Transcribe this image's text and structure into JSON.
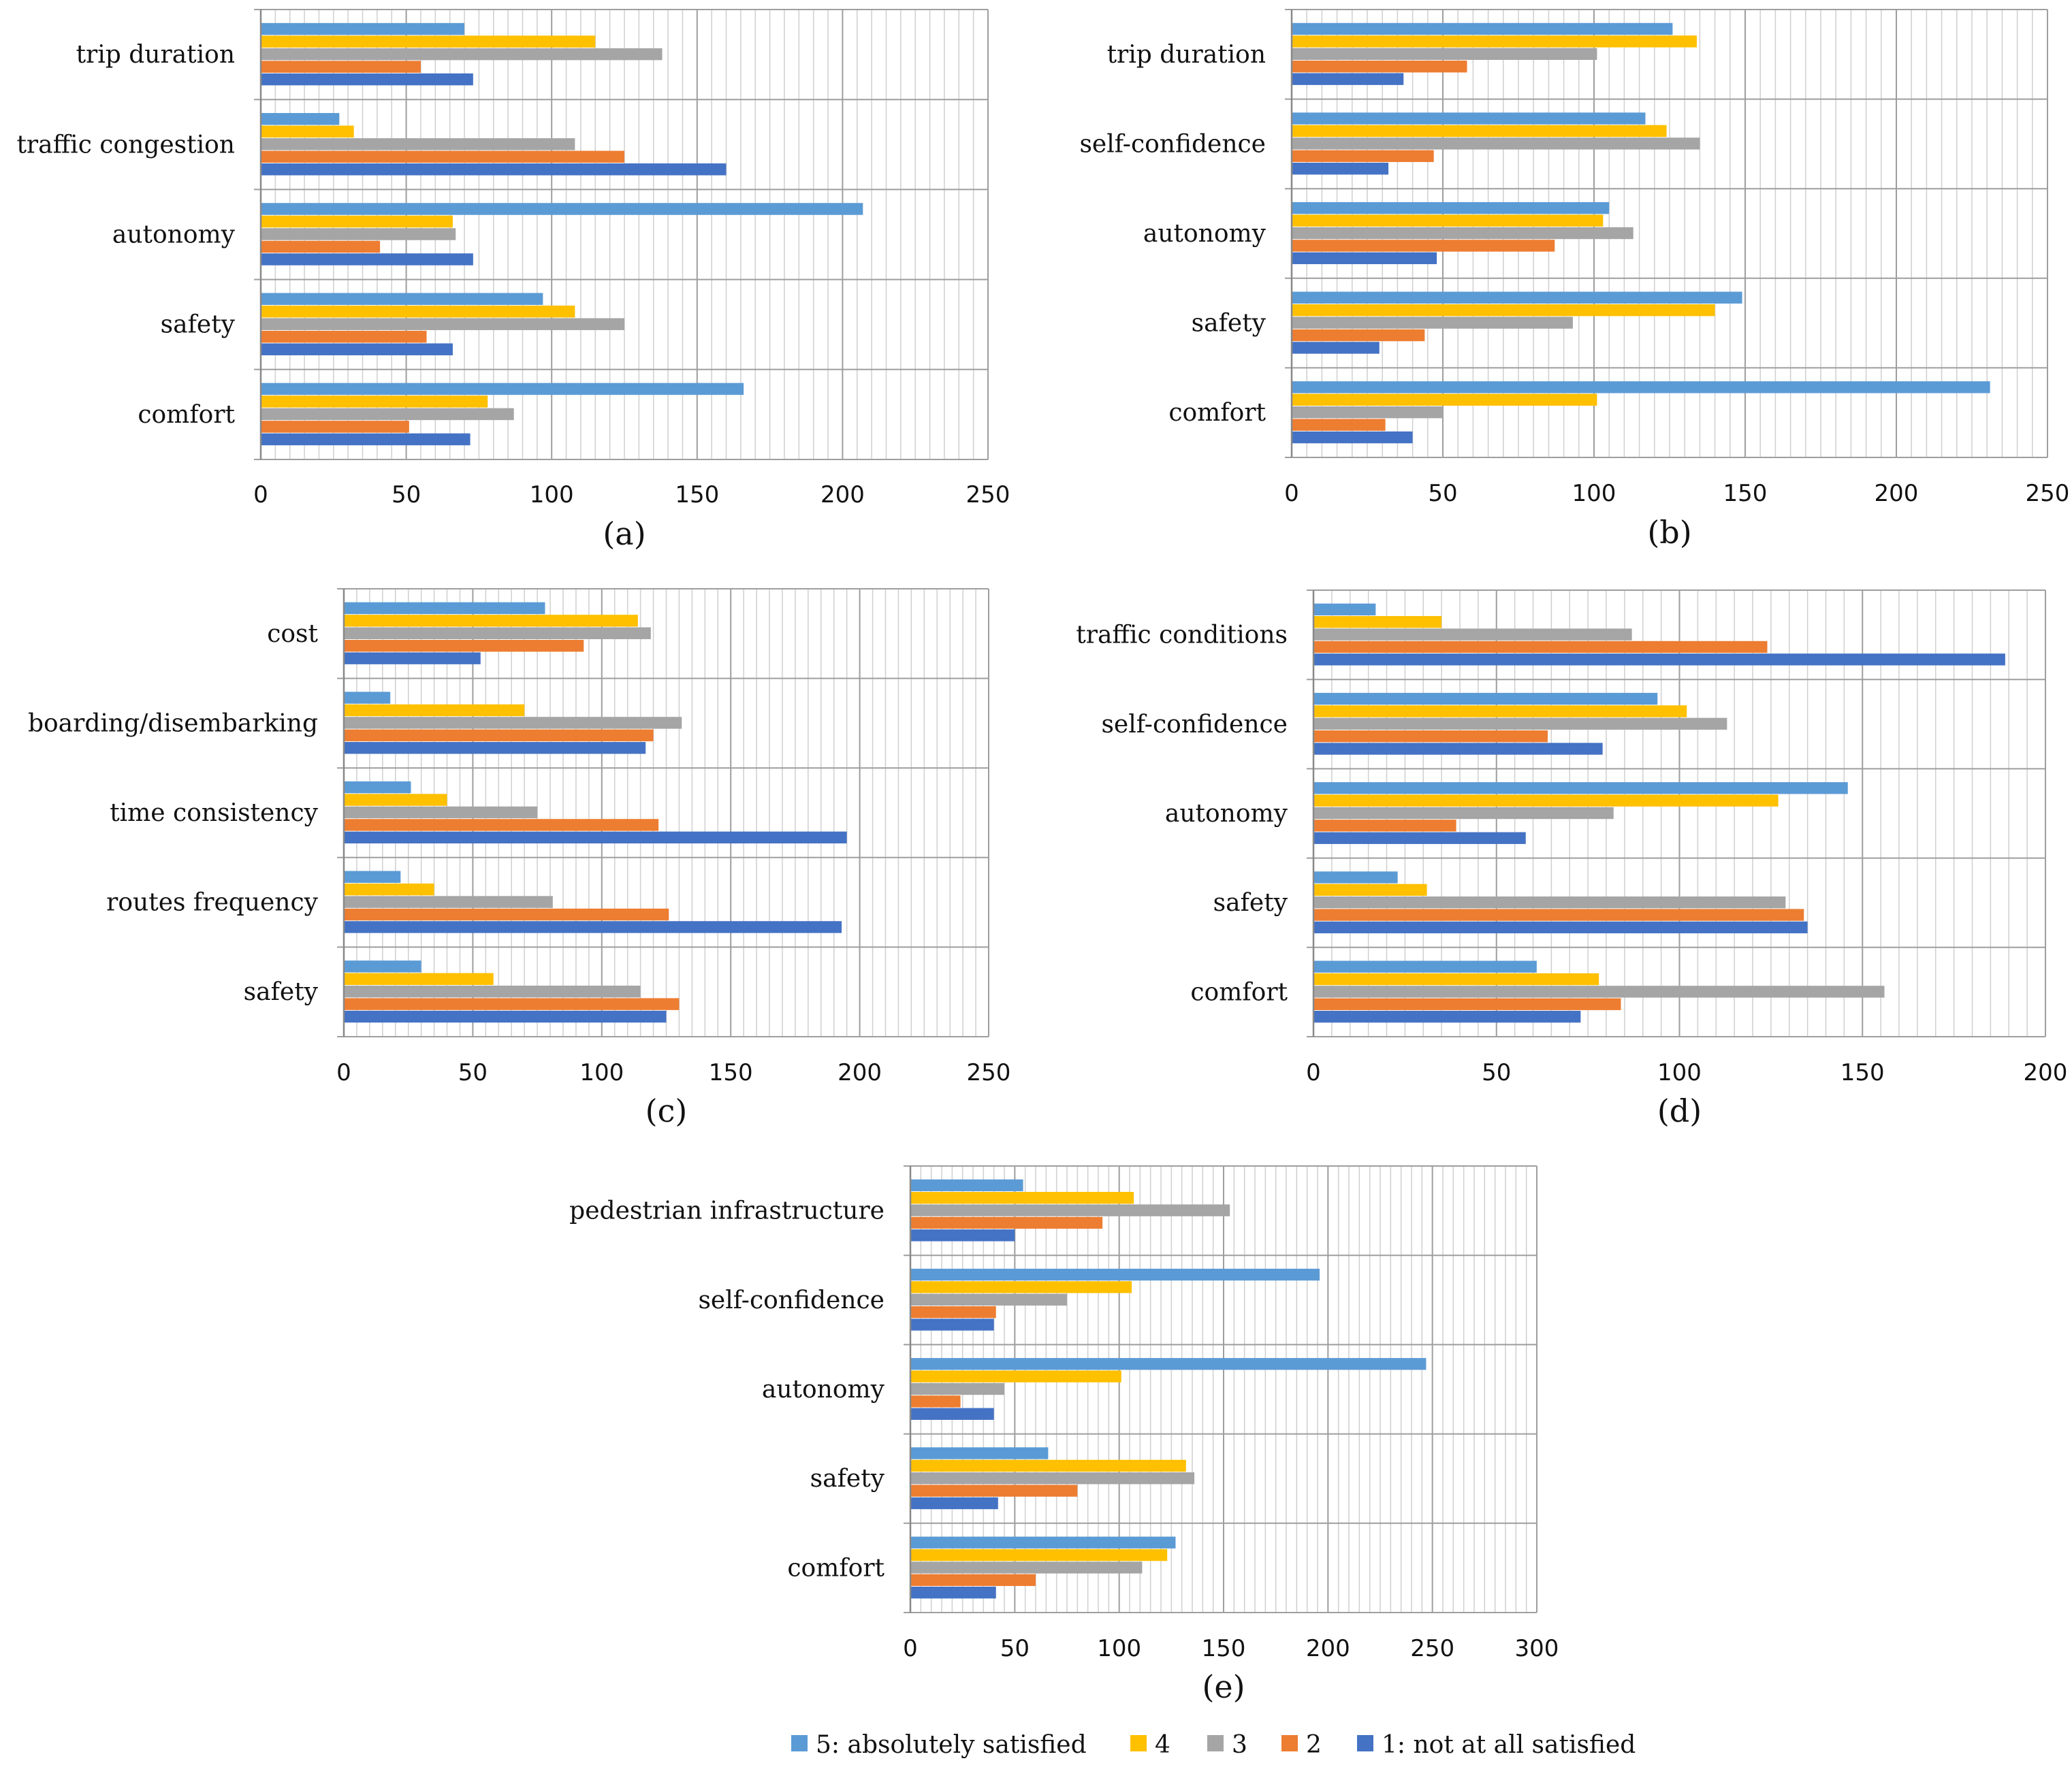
{
  "legend": [
    {
      "key": "s5",
      "label": "5: absolutely satisfied",
      "color": "#5b9bd5"
    },
    {
      "key": "s4",
      "label": "4",
      "color": "#ffc000"
    },
    {
      "key": "s3",
      "label": "3",
      "color": "#a5a5a5"
    },
    {
      "key": "s2",
      "label": "2",
      "color": "#ed7d31"
    },
    {
      "key": "s1",
      "label": "1: not at all satisfied",
      "color": "#4472c4"
    }
  ],
  "chart_data": [
    {
      "type": "bar",
      "orientation": "horizontal",
      "panel_label": "(a)",
      "categories": [
        "trip duration",
        "traffic congestion",
        "autonomy",
        "safety",
        "comfort"
      ],
      "xlim": [
        0,
        250
      ],
      "xticks": [
        "0",
        "50",
        "100",
        "150",
        "200",
        "250"
      ],
      "series": [
        {
          "name": "5: absolutely satisfied",
          "values": [
            70,
            27,
            207,
            97,
            166
          ]
        },
        {
          "name": "4",
          "values": [
            115,
            32,
            66,
            108,
            78
          ]
        },
        {
          "name": "3",
          "values": [
            138,
            108,
            67,
            125,
            87
          ]
        },
        {
          "name": "2",
          "values": [
            55,
            125,
            41,
            57,
            51
          ]
        },
        {
          "name": "1: not at all satisfied",
          "values": [
            73,
            160,
            73,
            66,
            72
          ]
        }
      ]
    },
    {
      "type": "bar",
      "orientation": "horizontal",
      "panel_label": "(b)",
      "categories": [
        "trip duration",
        "self-confidence",
        "autonomy",
        "safety",
        "comfort"
      ],
      "xlim": [
        0,
        250
      ],
      "xticks": [
        "0",
        "50",
        "100",
        "150",
        "200",
        "250"
      ],
      "series": [
        {
          "name": "5: absolutely satisfied",
          "values": [
            126,
            117,
            105,
            149,
            231
          ]
        },
        {
          "name": "4",
          "values": [
            134,
            124,
            103,
            140,
            101
          ]
        },
        {
          "name": "3",
          "values": [
            101,
            135,
            113,
            93,
            50
          ]
        },
        {
          "name": "2",
          "values": [
            58,
            47,
            87,
            44,
            31
          ]
        },
        {
          "name": "1: not at all satisfied",
          "values": [
            37,
            32,
            48,
            29,
            40
          ]
        }
      ]
    },
    {
      "type": "bar",
      "orientation": "horizontal",
      "panel_label": "(c)",
      "categories": [
        "cost",
        "boarding/disembarking",
        "time consistency",
        "routes frequency",
        "safety"
      ],
      "xlim": [
        0,
        250
      ],
      "xticks": [
        "0",
        "50",
        "100",
        "150",
        "200",
        "250"
      ],
      "series": [
        {
          "name": "5: absolutely satisfied",
          "values": [
            78,
            18,
            26,
            22,
            30
          ]
        },
        {
          "name": "4",
          "values": [
            114,
            70,
            40,
            35,
            58
          ]
        },
        {
          "name": "3",
          "values": [
            119,
            131,
            75,
            81,
            115
          ]
        },
        {
          "name": "2",
          "values": [
            93,
            120,
            122,
            126,
            130
          ]
        },
        {
          "name": "1: not at all satisfied",
          "values": [
            53,
            117,
            195,
            193,
            125
          ]
        }
      ]
    },
    {
      "type": "bar",
      "orientation": "horizontal",
      "panel_label": "(d)",
      "categories": [
        "traffic conditions",
        "self-confidence",
        "autonomy",
        "safety",
        "comfort"
      ],
      "xlim": [
        0,
        200
      ],
      "xticks": [
        "0",
        "50",
        "100",
        "150",
        "200"
      ],
      "series": [
        {
          "name": "5: absolutely satisfied",
          "values": [
            17,
            94,
            146,
            23,
            61
          ]
        },
        {
          "name": "4",
          "values": [
            35,
            102,
            127,
            31,
            78
          ]
        },
        {
          "name": "3",
          "values": [
            87,
            113,
            82,
            129,
            156
          ]
        },
        {
          "name": "2",
          "values": [
            124,
            64,
            39,
            134,
            84
          ]
        },
        {
          "name": "1: not at all satisfied",
          "values": [
            189,
            79,
            58,
            135,
            73
          ]
        }
      ]
    },
    {
      "type": "bar",
      "orientation": "horizontal",
      "panel_label": "(e)",
      "categories": [
        "pedestrian infrastructure",
        "self-confidence",
        "autonomy",
        "safety",
        "comfort"
      ],
      "xlim": [
        0,
        300
      ],
      "xticks": [
        "0",
        "50",
        "100",
        "150",
        "200",
        "250",
        "300"
      ],
      "series": [
        {
          "name": "5: absolutely satisfied",
          "values": [
            54,
            196,
            247,
            66,
            127
          ]
        },
        {
          "name": "4",
          "values": [
            107,
            106,
            101,
            132,
            123
          ]
        },
        {
          "name": "3",
          "values": [
            153,
            75,
            45,
            136,
            111
          ]
        },
        {
          "name": "2",
          "values": [
            92,
            41,
            24,
            80,
            60
          ]
        },
        {
          "name": "1: not at all satisfied",
          "values": [
            50,
            40,
            40,
            42,
            41
          ]
        }
      ]
    }
  ]
}
